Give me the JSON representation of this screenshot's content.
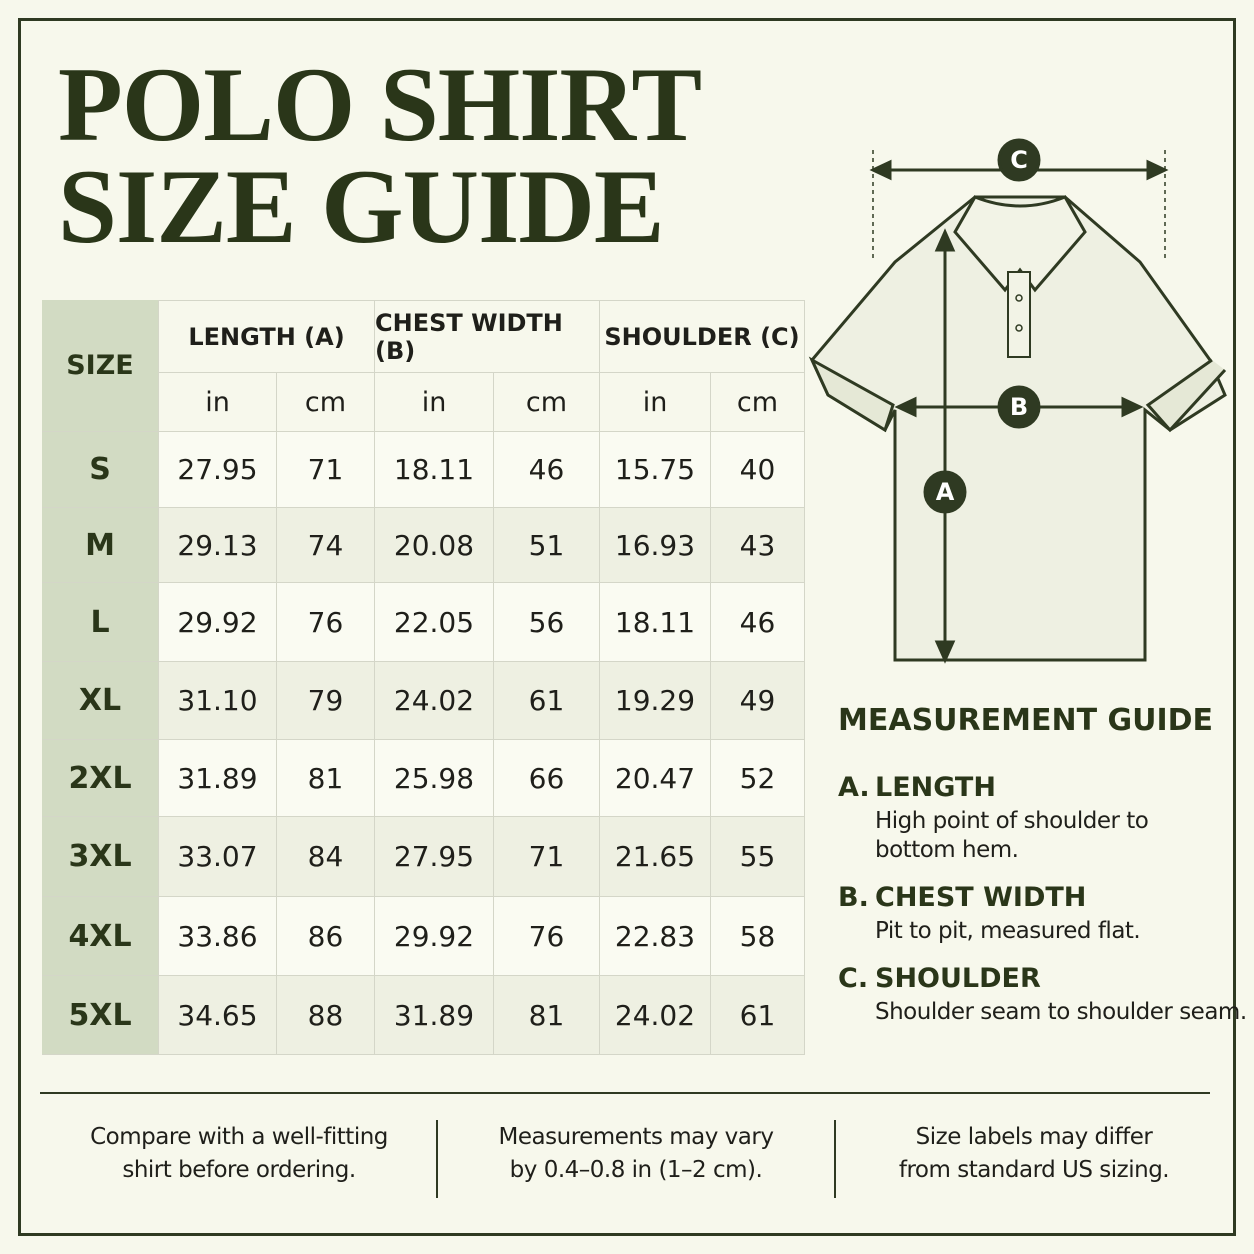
{
  "header": {
    "title_lines": [
      "POLO SHIRT",
      "SIZE GUIDE"
    ]
  },
  "table": {
    "size_header": "SIZE",
    "groups": [
      "LENGTH (A)",
      "CHEST WIDTH (B)",
      "SHOULDER (C)"
    ],
    "units": [
      "in",
      "cm",
      "in",
      "cm",
      "in",
      "cm"
    ],
    "rows": [
      [
        "S",
        "27.95",
        "71",
        "18.11",
        "46",
        "15.75",
        "40"
      ],
      [
        "M",
        "29.13",
        "74",
        "20.08",
        "51",
        "16.93",
        "43"
      ],
      [
        "L",
        "29.92",
        "76",
        "22.05",
        "56",
        "18.11",
        "46"
      ],
      [
        "XL",
        "31.10",
        "79",
        "24.02",
        "61",
        "19.29",
        "49"
      ],
      [
        "2XL",
        "31.89",
        "81",
        "25.98",
        "66",
        "20.47",
        "52"
      ],
      [
        "3XL",
        "33.07",
        "84",
        "27.95",
        "71",
        "21.65",
        "55"
      ],
      [
        "4XL",
        "33.86",
        "86",
        "29.92",
        "76",
        "22.83",
        "58"
      ],
      [
        "5XL",
        "34.65",
        "88",
        "31.89",
        "81",
        "24.02",
        "61"
      ]
    ]
  },
  "diagram": {
    "labels": [
      "C",
      "B",
      "A"
    ]
  },
  "guide": {
    "title": "MEASUREMENT GUIDE",
    "items": [
      {
        "letter": "A.",
        "name": "LENGTH",
        "text_lines": [
          "High point of shoulder to",
          "bottom hem."
        ]
      },
      {
        "letter": "B.",
        "name": "CHEST WIDTH",
        "text_lines": [
          "Pit to pit, measured flat."
        ]
      },
      {
        "letter": "C.",
        "name": "SHOULDER",
        "text_lines": [
          "Shoulder seam to shoulder seam."
        ]
      }
    ]
  },
  "footer": {
    "notes": [
      [
        "Compare with a well-fitting",
        "shirt before ordering."
      ],
      [
        "Measurements may vary",
        "by 0.4–0.8 in (1–2 cm)."
      ],
      [
        "Size labels may differ",
        "from standard US sizing."
      ]
    ]
  }
}
